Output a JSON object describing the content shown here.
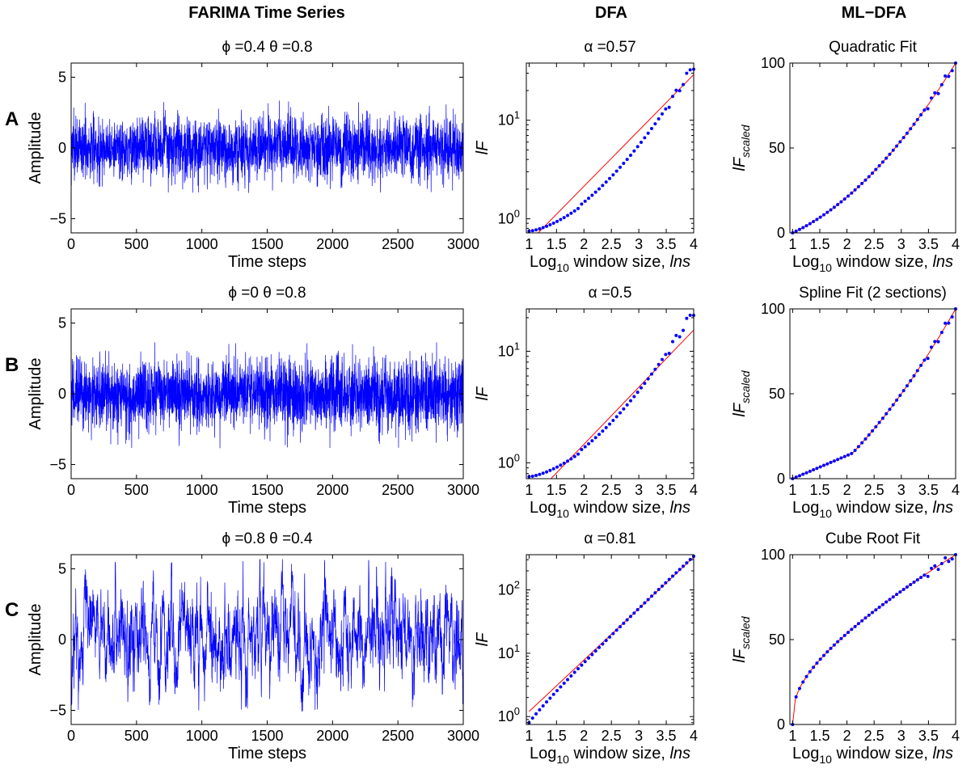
{
  "column_titles": [
    "FARIMA Time Series",
    "DFA",
    "ML−DFA"
  ],
  "row_labels": [
    "A",
    "B",
    "C"
  ],
  "colors": {
    "series": "#0000ff",
    "fit": "#ff0000",
    "axes": "#000000"
  },
  "chart_data": [
    {
      "row": "A",
      "panel": "time-series",
      "type": "line",
      "title": "ϕ =0.4 θ =0.8",
      "xlabel": "Time steps",
      "ylabel": "Amplitude",
      "xlim": [
        0,
        3000
      ],
      "ylim": [
        -6,
        6
      ],
      "xticks": [
        "0",
        "500",
        "1000",
        "1500",
        "2000",
        "2500",
        "3000"
      ],
      "yticks": [
        "−5",
        "0",
        "5"
      ],
      "series": [
        {
          "n_points": 3000,
          "mean": 0,
          "std": 1.1,
          "range": [
            -3.3,
            3.4
          ],
          "style": "blue line"
        }
      ]
    },
    {
      "row": "A",
      "panel": "DFA",
      "type": "scatter",
      "yscale": "log",
      "title": "α =0.57",
      "xlabel_main": "Log",
      "xlabel_sub": "10",
      "xlabel_rest": " window size, ",
      "xlabel_var": "lns",
      "ylabel": "lF",
      "xlim": [
        0.95,
        4.0
      ],
      "ylim": [
        0.72,
        38
      ],
      "xticks": [
        "1",
        "1.5",
        "2",
        "2.5",
        "3",
        "3.5",
        "4"
      ],
      "yticks": [
        {
          "base": "10",
          "exp": "0"
        },
        {
          "base": "10",
          "exp": "1"
        }
      ],
      "series": [
        {
          "x": [
            1.0,
            4.0
          ],
          "y": [
            0.75,
            36
          ]
        }
      ],
      "fit": {
        "type": "power-law",
        "alpha": 0.57,
        "line": [
          [
            1.0,
            0.58
          ],
          [
            4.0,
            29
          ]
        ]
      }
    },
    {
      "row": "A",
      "panel": "ML-DFA",
      "type": "scatter",
      "title": "Quadratic Fit",
      "xlabel_main": "Log",
      "xlabel_sub": "10",
      "xlabel_rest": " window size, ",
      "xlabel_var": "lns",
      "ylabel_main": "lF",
      "ylabel_sub": "scaled",
      "xlim": [
        0.95,
        4.0
      ],
      "ylim": [
        0,
        100
      ],
      "xticks": [
        "1",
        "1.5",
        "2",
        "2.5",
        "3",
        "3.5",
        "4"
      ],
      "yticks": [
        "0",
        "50",
        "100"
      ],
      "fit": {
        "type": "quadratic"
      }
    },
    {
      "row": "B",
      "panel": "time-series",
      "type": "line",
      "title": "ϕ =0 θ =0.8",
      "xlabel": "Time steps",
      "ylabel": "Amplitude",
      "xlim": [
        0,
        3000
      ],
      "ylim": [
        -6,
        6
      ],
      "xticks": [
        "0",
        "500",
        "1000",
        "1500",
        "2000",
        "2500",
        "3000"
      ],
      "yticks": [
        "−5",
        "0",
        "5"
      ],
      "series": [
        {
          "n_points": 3000,
          "mean": 0,
          "std": 1.25,
          "range": [
            -4.0,
            3.7
          ],
          "style": "blue line"
        }
      ]
    },
    {
      "row": "B",
      "panel": "DFA",
      "type": "scatter",
      "yscale": "log",
      "title": "α =0.5",
      "xlabel_main": "Log",
      "xlabel_sub": "10",
      "xlabel_rest": " window size, ",
      "xlabel_var": "lns",
      "ylabel": "lF",
      "xlim": [
        0.95,
        4.0
      ],
      "ylim": [
        0.72,
        24
      ],
      "xticks": [
        "1",
        "1.5",
        "2",
        "2.5",
        "3",
        "3.5",
        "4"
      ],
      "yticks": [
        {
          "base": "10",
          "exp": "0"
        },
        {
          "base": "10",
          "exp": "1"
        }
      ],
      "series": [
        {
          "x": [
            1.0,
            4.0
          ],
          "y": [
            0.75,
            23
          ]
        }
      ],
      "fit": {
        "type": "power-law",
        "alpha": 0.5,
        "line": [
          [
            1.0,
            0.45
          ],
          [
            4.0,
            15.5
          ]
        ]
      }
    },
    {
      "row": "B",
      "panel": "ML-DFA",
      "type": "scatter",
      "title": "Spline Fit (2 sections)",
      "xlabel_main": "Log",
      "xlabel_sub": "10",
      "xlabel_rest": " window size, ",
      "xlabel_var": "lns",
      "ylabel_main": "lF",
      "ylabel_sub": "scaled",
      "xlim": [
        0.95,
        4.0
      ],
      "ylim": [
        0,
        100
      ],
      "xticks": [
        "1",
        "1.5",
        "2",
        "2.5",
        "3",
        "3.5",
        "4"
      ],
      "yticks": [
        "0",
        "50",
        "100"
      ],
      "fit": {
        "type": "spline",
        "sections": 2,
        "knot": [
          2.1,
          15
        ]
      }
    },
    {
      "row": "C",
      "panel": "time-series",
      "type": "line",
      "title": "ϕ =0.8 θ =0.4",
      "xlabel": "Time steps",
      "ylabel": "Amplitude",
      "xlim": [
        0,
        3000
      ],
      "ylim": [
        -6,
        6
      ],
      "xticks": [
        "0",
        "500",
        "1000",
        "1500",
        "2000",
        "2500",
        "3000"
      ],
      "yticks": [
        "−5",
        "0",
        "5"
      ],
      "series": [
        {
          "n_points": 3000,
          "mean": 0,
          "std": 1.9,
          "range": [
            -5.1,
            5.7
          ],
          "style": "blue line"
        }
      ]
    },
    {
      "row": "C",
      "panel": "DFA",
      "type": "scatter",
      "yscale": "log",
      "title": "α =0.81",
      "xlabel_main": "Log",
      "xlabel_sub": "10",
      "xlabel_rest": " window size, ",
      "xlabel_var": "lns",
      "ylabel": "lF",
      "xlim": [
        0.95,
        4.0
      ],
      "ylim": [
        0.75,
        360
      ],
      "xticks": [
        "1",
        "1.5",
        "2",
        "2.5",
        "3",
        "3.5",
        "4"
      ],
      "yticks": [
        {
          "base": "10",
          "exp": "0"
        },
        {
          "base": "10",
          "exp": "1"
        },
        {
          "base": "10",
          "exp": "2"
        }
      ],
      "series": [
        {
          "x": [
            1.0,
            4.0
          ],
          "y": [
            0.8,
            340
          ]
        }
      ],
      "fit": {
        "type": "power-law",
        "alpha": 0.81,
        "line": [
          [
            1.0,
            1.2
          ],
          [
            4.0,
            330
          ]
        ]
      }
    },
    {
      "row": "C",
      "panel": "ML-DFA",
      "type": "scatter",
      "title": "Cube Root Fit",
      "xlabel_main": "Log",
      "xlabel_sub": "10",
      "xlabel_rest": " window size, ",
      "xlabel_var": "lns",
      "ylabel_main": "lF",
      "ylabel_sub": "scaled",
      "xlim": [
        0.95,
        4.0
      ],
      "ylim": [
        0,
        100
      ],
      "xticks": [
        "1",
        "1.5",
        "2",
        "2.5",
        "3",
        "3.5",
        "4"
      ],
      "yticks": [
        "0",
        "50",
        "100"
      ],
      "fit": {
        "type": "cube-root"
      }
    }
  ]
}
